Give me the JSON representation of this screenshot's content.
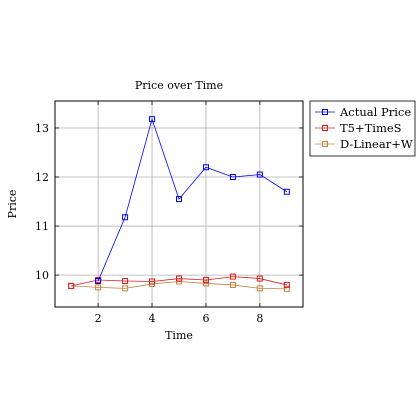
{
  "chart_data": {
    "type": "line",
    "title": "Price over Time",
    "xlabel": "Time",
    "ylabel": "Price",
    "xlim": [
      0.4,
      9.6
    ],
    "ylim": [
      9.35,
      13.55
    ],
    "xticks": [
      2,
      4,
      6,
      8
    ],
    "yticks": [
      10,
      11,
      12,
      13
    ],
    "grid": true,
    "legend_position": "outside-top-right",
    "series": [
      {
        "name": "Actual Price",
        "color": "#0000ff",
        "marker": "square",
        "x": [
          2,
          3,
          4,
          5,
          6,
          7,
          8,
          9
        ],
        "y": [
          9.88,
          11.18,
          13.18,
          11.55,
          12.2,
          12.0,
          12.05,
          11.7
        ]
      },
      {
        "name": "T5+TimeS",
        "color": "#e31a1c",
        "marker": "square",
        "x": [
          1,
          2,
          3,
          4,
          5,
          6,
          7,
          8,
          9
        ],
        "y": [
          9.78,
          9.9,
          9.88,
          9.87,
          9.93,
          9.9,
          9.97,
          9.93,
          9.8
        ]
      },
      {
        "name": "D-Linear+W",
        "color": "#c8803a",
        "marker": "square",
        "x": [
          1,
          2,
          3,
          4,
          5,
          6,
          7,
          8,
          9
        ],
        "y": [
          9.78,
          9.75,
          9.73,
          9.82,
          9.87,
          9.83,
          9.8,
          9.73,
          9.72
        ]
      }
    ]
  }
}
